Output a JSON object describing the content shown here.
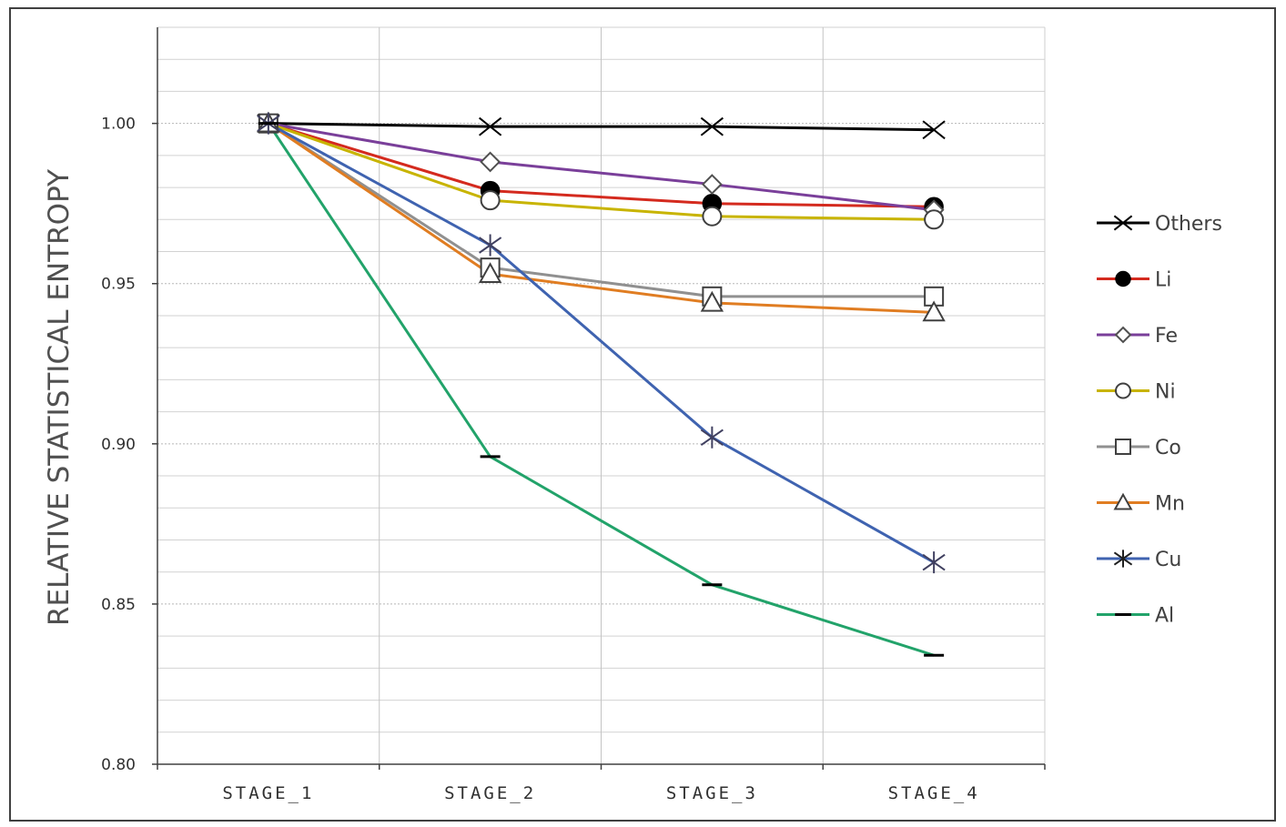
{
  "chart_data": {
    "type": "line",
    "ylabel": "RELATIVE STATISTICAL ENTROPY",
    "xlabel": "",
    "categories": [
      "STAGE_1",
      "STAGE_2",
      "STAGE_3",
      "STAGE_4"
    ],
    "ylim": [
      0.8,
      1.03
    ],
    "yticks": [
      "0.80",
      "0.85",
      "0.90",
      "0.95",
      "1.00"
    ],
    "ytick_values": [
      0.8,
      0.85,
      0.9,
      0.95,
      1.0
    ],
    "grid": true,
    "legend_position": "right",
    "series": [
      {
        "name": "Others",
        "color": "#000000",
        "marker": "x",
        "values": [
          1.0,
          0.999,
          0.999,
          0.998
        ]
      },
      {
        "name": "Li",
        "color": "#d42a1e",
        "marker": "filled-circle",
        "values": [
          1.0,
          0.979,
          0.975,
          0.974
        ]
      },
      {
        "name": "Fe",
        "color": "#7a3f9a",
        "marker": "diamond",
        "values": [
          1.0,
          0.988,
          0.981,
          0.973
        ]
      },
      {
        "name": "Ni",
        "color": "#c8b400",
        "marker": "circle",
        "values": [
          1.0,
          0.976,
          0.971,
          0.97
        ]
      },
      {
        "name": "Co",
        "color": "#909090",
        "marker": "square",
        "values": [
          1.0,
          0.955,
          0.946,
          0.946
        ]
      },
      {
        "name": "Mn",
        "color": "#e07d22",
        "marker": "triangle",
        "values": [
          1.0,
          0.953,
          0.944,
          0.941
        ]
      },
      {
        "name": "Cu",
        "color": "#3f63b0",
        "marker": "star",
        "values": [
          1.0,
          0.962,
          0.902,
          0.863
        ]
      },
      {
        "name": "Al",
        "color": "#22a36a",
        "marker": "dash",
        "values": [
          1.0,
          0.896,
          0.856,
          0.834
        ]
      }
    ]
  }
}
